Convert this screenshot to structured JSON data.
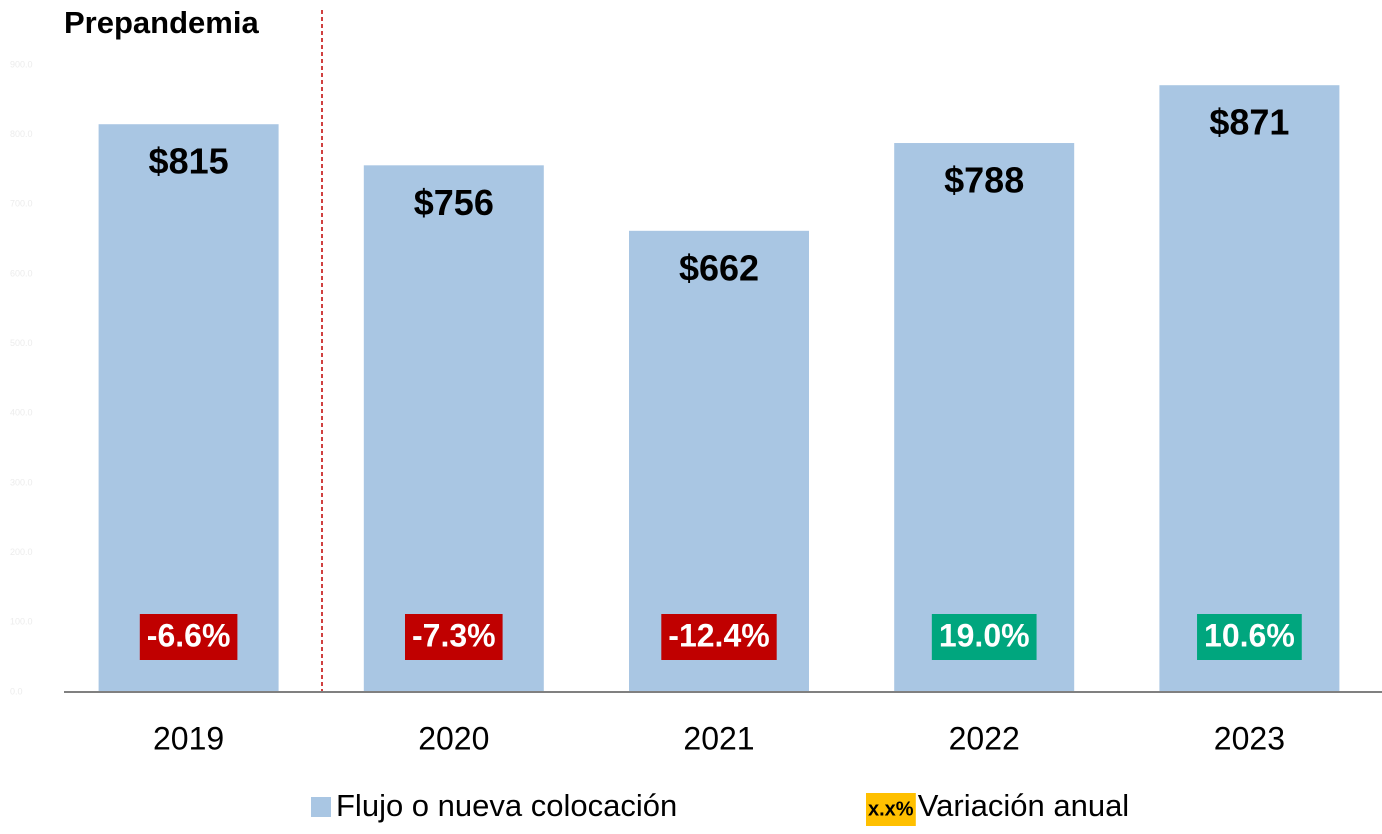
{
  "chart_data": {
    "type": "bar",
    "annotation": "Prepandemia",
    "categories": [
      "2019",
      "2020",
      "2021",
      "2022",
      "2023"
    ],
    "series": [
      {
        "name": "Flujo o nueva colocación",
        "color": "#a9c6e3",
        "values": [
          815,
          756,
          662,
          788,
          871
        ],
        "value_labels": [
          "$815",
          "$756",
          "$662",
          "$788",
          "$871"
        ]
      }
    ],
    "variation": {
      "name": "Variación anual",
      "sample": "x.x%",
      "sample_color": "#ffc000",
      "negative_color": "#c00000",
      "positive_color": "#00a67e",
      "values": [
        -6.6,
        -7.3,
        -12.4,
        19.0,
        10.6
      ],
      "value_labels": [
        "-6.6%",
        "-7.3%",
        "-12.4%",
        "19.0%",
        "10.6%"
      ]
    },
    "ylim": [
      0,
      900
    ],
    "yticks": [
      {
        "value": 0,
        "label": "0.0"
      },
      {
        "value": 100,
        "label": "100.0"
      },
      {
        "value": 200,
        "label": "200.0"
      },
      {
        "value": 300,
        "label": "300.0"
      },
      {
        "value": 400,
        "label": "400.0"
      },
      {
        "value": 500,
        "label": "500.0"
      },
      {
        "value": 600,
        "label": "600.0"
      },
      {
        "value": 700,
        "label": "700.0"
      },
      {
        "value": 800,
        "label": "800.0"
      },
      {
        "value": 900,
        "label": "900.0"
      }
    ]
  }
}
